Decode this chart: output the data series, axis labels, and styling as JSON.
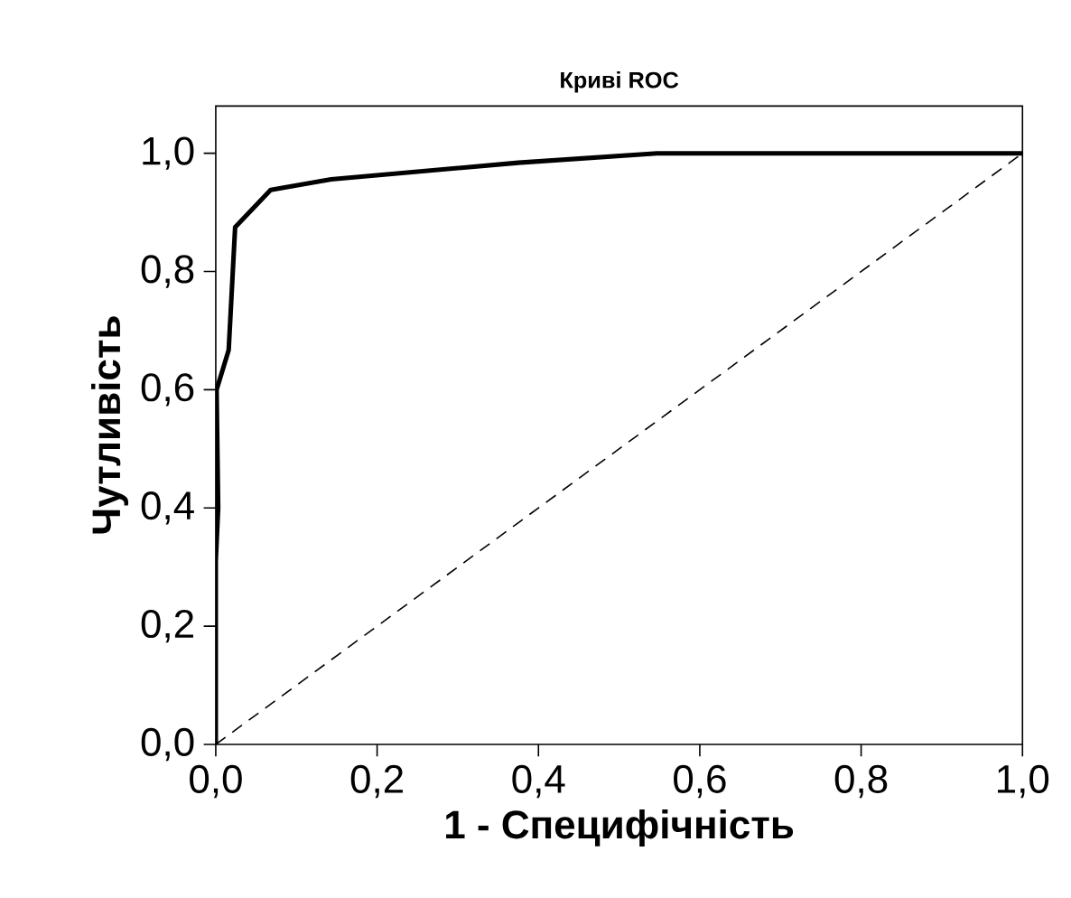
{
  "chart_data": {
    "type": "line",
    "title": "Криві ROC",
    "xlabel": "1 - Специфічність",
    "ylabel": "Чутливість",
    "series": [
      {
        "color": "#000000",
        "line_style": "solid",
        "x": [
          0,
          0.0,
          0.003,
          0.001,
          0.016,
          0.024,
          0.068,
          0.143,
          0.375,
          0.547,
          1.0
        ],
        "values": [
          0,
          0.31,
          0.4,
          0.6,
          0.667,
          0.875,
          0.938,
          0.956,
          0.984,
          1.0,
          1.0
        ]
      },
      {
        "color": "#000000",
        "line_style": "dashed",
        "x": [
          0,
          1
        ],
        "values": [
          0,
          1
        ]
      }
    ],
    "xlim": [
      0,
      1
    ],
    "ylim": [
      0,
      1.08
    ],
    "xticks": [
      {
        "value": 0,
        "label": "0,0"
      },
      {
        "value": 0.2,
        "label": "0,2"
      },
      {
        "value": 0.4,
        "label": "0,4"
      },
      {
        "value": 0.6,
        "label": "0,6"
      },
      {
        "value": 0.8,
        "label": "0,8"
      },
      {
        "value": 1.0,
        "label": "1,0"
      }
    ],
    "yticks": [
      {
        "value": 0,
        "label": "0,0"
      },
      {
        "value": 0.2,
        "label": "0,2"
      },
      {
        "value": 0.4,
        "label": "0,4"
      },
      {
        "value": 0.6,
        "label": "0,6"
      },
      {
        "value": 0.8,
        "label": "0,8"
      },
      {
        "value": 1.0,
        "label": "1,0"
      }
    ],
    "grid": false,
    "marker": "none"
  }
}
